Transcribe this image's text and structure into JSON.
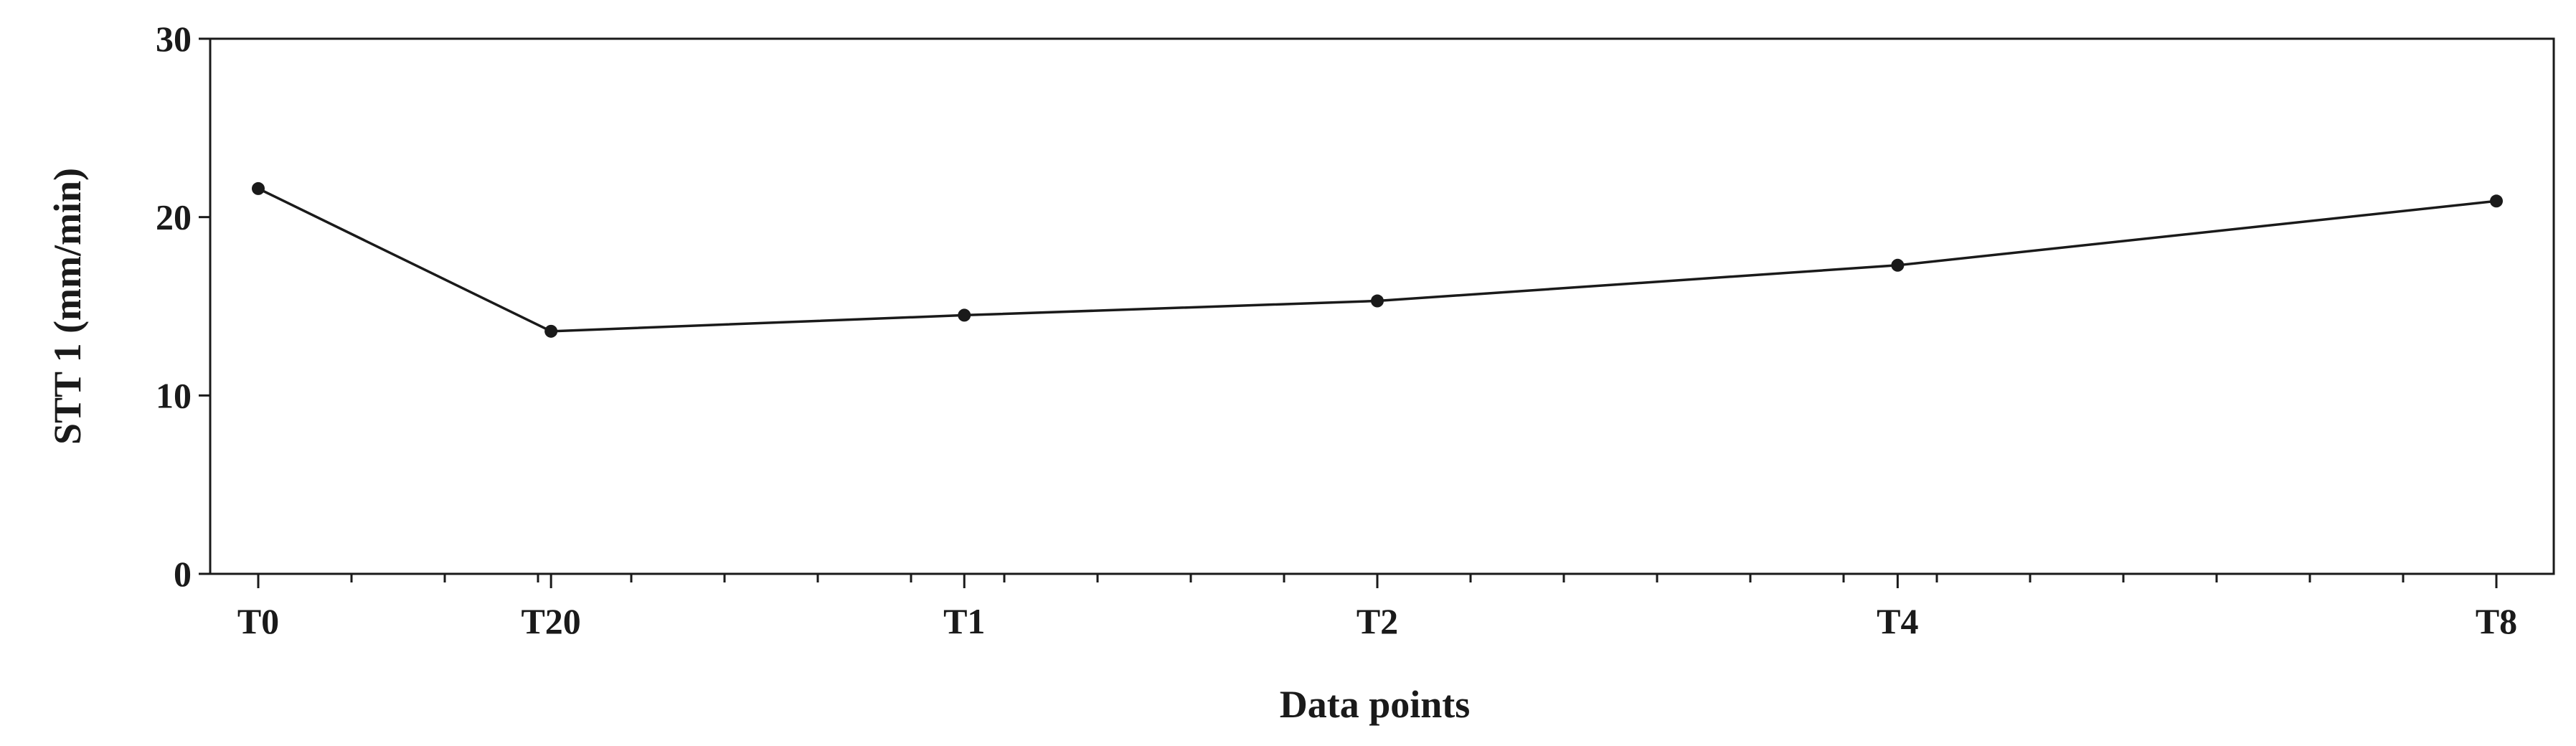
{
  "chart_data": {
    "type": "line",
    "title": "",
    "xlabel": "Data points",
    "ylabel": "STT 1 (mm/min)",
    "x_scale": "log2(1+h)",
    "x": [
      0,
      0.333,
      1,
      2,
      4,
      8
    ],
    "x_labels": [
      "T0",
      "T20",
      "T1",
      "T2",
      "T4",
      "T8"
    ],
    "y": [
      21.6,
      13.6,
      14.5,
      15.3,
      17.3,
      20.9
    ],
    "ylim": [
      0,
      30
    ],
    "yticks": [
      0,
      10,
      20,
      30
    ],
    "grid": false,
    "colors": {
      "line": "#1a1a1a",
      "marker": "#1a1a1a"
    }
  }
}
